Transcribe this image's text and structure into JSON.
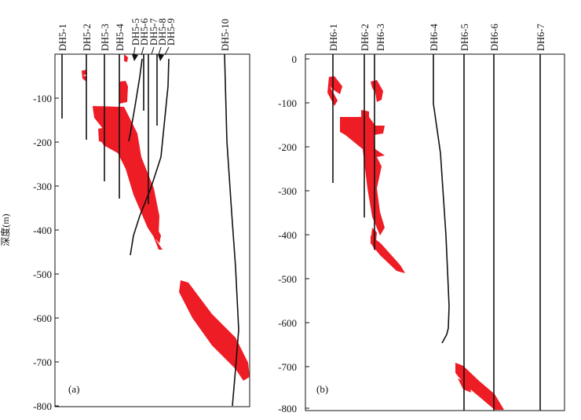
{
  "colors": {
    "ore": "#ee1c25",
    "line": "#111111",
    "frame": "#111111"
  },
  "y_axis_label": "深度(m)",
  "panel_a": {
    "label": "(a)",
    "y_ticks": [
      {
        "value": -100,
        "label": "-100"
      },
      {
        "value": -200,
        "label": "-200"
      },
      {
        "value": -300,
        "label": "-300"
      },
      {
        "value": -400,
        "label": "-400"
      },
      {
        "value": -500,
        "label": "-500"
      },
      {
        "value": -600,
        "label": "-600"
      },
      {
        "value": -700,
        "label": "-700"
      },
      {
        "value": -800,
        "label": "-800"
      }
    ],
    "holes": [
      "DH5-1",
      "DH5-2",
      "DH5-3",
      "DH5-4",
      "DH5-5",
      "DH5-6",
      "DH5-7",
      "DH5-8",
      "DH5-9",
      "DH5-10"
    ]
  },
  "panel_b": {
    "label": "(b)",
    "y_ticks": [
      {
        "value": 0,
        "label": "0"
      },
      {
        "value": -100,
        "label": "-100"
      },
      {
        "value": -200,
        "label": "-200"
      },
      {
        "value": -300,
        "label": "-300"
      },
      {
        "value": -400,
        "label": "-400"
      },
      {
        "value": -500,
        "label": "-500"
      },
      {
        "value": -600,
        "label": "-600"
      },
      {
        "value": -700,
        "label": "-700"
      },
      {
        "value": -800,
        "label": "-800"
      }
    ],
    "holes": [
      "DH6-1",
      "DH6-2",
      "DH6-3",
      "DH6-4",
      "DH6-5",
      "DH6-6",
      "DH6-7"
    ]
  }
}
